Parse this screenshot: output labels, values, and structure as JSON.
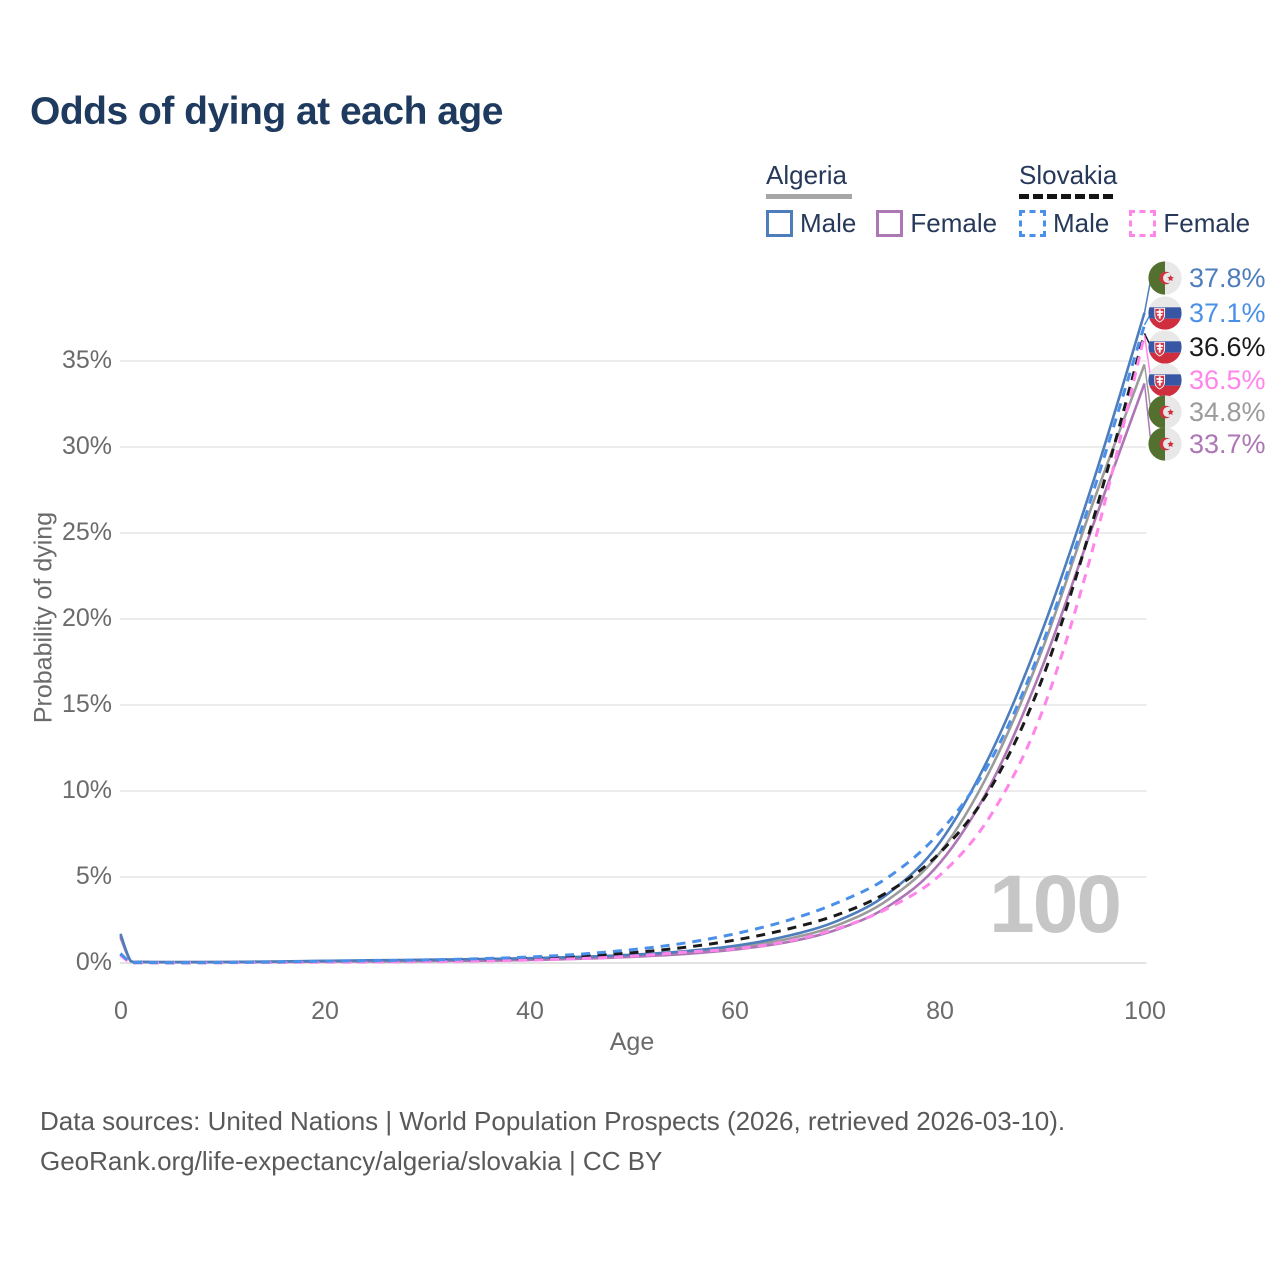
{
  "title": "Odds of dying at each age",
  "colors": {
    "title_text": "#1e3a5e",
    "legend_text": "#27395a",
    "axis_text": "#6b6b6b",
    "grid_line": "#ececec",
    "baseline": "#e3e3e3",
    "footer_text": "#595959",
    "watermark_text": "#c6c6c6",
    "algeria_underline": "#a6a6a6",
    "slovakia_underline": "#141414",
    "algeria_male": "#4d7ebb",
    "algeria_female": "#ad76b5",
    "algeria_both": "#9b9b9b",
    "slovakia_male": "#4a90e8",
    "slovakia_female": "#ff85ea",
    "slovakia_both": "#1a1a1a"
  },
  "legend": {
    "groups": [
      {
        "country": "Algeria",
        "line_style": "solid",
        "items": [
          {
            "label": "Male",
            "color": "#4d7ebb"
          },
          {
            "label": "Female",
            "color": "#ad76b5"
          }
        ]
      },
      {
        "country": "Slovakia",
        "line_style": "dashed",
        "items": [
          {
            "label": "Male",
            "color": "#4a90e8"
          },
          {
            "label": "Female",
            "color": "#ff85ea"
          }
        ]
      }
    ]
  },
  "axes": {
    "y_label": "Probability of dying",
    "y_ticks": [
      "35%",
      "30%",
      "25%",
      "20%",
      "15%",
      "10%",
      "5%",
      "0%"
    ],
    "x_label": "Age",
    "x_ticks": [
      "0",
      "20",
      "40",
      "60",
      "80",
      "100"
    ]
  },
  "watermark": "100",
  "end_labels": [
    {
      "flag": "algeria",
      "value": "37.8%",
      "color": "#4d7ebb",
      "series": "Algeria Male"
    },
    {
      "flag": "slovakia",
      "value": "37.1%",
      "color": "#4a90e8",
      "series": "Slovakia Male"
    },
    {
      "flag": "slovakia",
      "value": "36.6%",
      "color": "#1a1a1a",
      "series": "Slovakia Both sexes"
    },
    {
      "flag": "slovakia",
      "value": "36.5%",
      "color": "#ff85ea",
      "series": "Slovakia Female"
    },
    {
      "flag": "algeria",
      "value": "34.8%",
      "color": "#9b9b9b",
      "series": "Algeria Both sexes"
    },
    {
      "flag": "algeria",
      "value": "33.7%",
      "color": "#ad76b5",
      "series": "Algeria Female"
    }
  ],
  "footer": {
    "line1": "Data sources: United Nations | World Population Prospects (2026, retrieved 2026-03-10).",
    "line2": "GeoRank.org/life-expectancy/algeria/slovakia | CC BY"
  },
  "chart_data": {
    "type": "line",
    "title": "Odds of dying at each age",
    "xlabel": "Age",
    "ylabel": "Probability of dying",
    "xlim": [
      0,
      100
    ],
    "ylim": [
      0,
      38
    ],
    "y_unit": "%",
    "grid": "horizontal",
    "legend_position": "top-right",
    "x": [
      0,
      1,
      2,
      5,
      10,
      15,
      20,
      25,
      30,
      35,
      40,
      45,
      50,
      55,
      60,
      65,
      70,
      75,
      80,
      85,
      90,
      95,
      100
    ],
    "series": [
      {
        "name": "Algeria Male",
        "country": "Algeria",
        "sex": "Male",
        "color": "#4d7ebb",
        "dash": false,
        "end_label": "37.8%",
        "values": [
          1.7,
          0.12,
          0.07,
          0.05,
          0.06,
          0.09,
          0.13,
          0.16,
          0.19,
          0.23,
          0.28,
          0.36,
          0.48,
          0.68,
          1.0,
          1.55,
          2.45,
          4.05,
          7.0,
          12.2,
          19.3,
          28.0,
          37.8
        ]
      },
      {
        "name": "Algeria Female",
        "country": "Algeria",
        "sex": "Female",
        "color": "#ad76b5",
        "dash": false,
        "end_label": "33.7%",
        "values": [
          1.5,
          0.1,
          0.06,
          0.04,
          0.05,
          0.06,
          0.08,
          0.09,
          0.11,
          0.13,
          0.18,
          0.25,
          0.36,
          0.52,
          0.78,
          1.2,
          1.95,
          3.3,
          5.8,
          10.4,
          17.2,
          25.5,
          33.7
        ]
      },
      {
        "name": "Algeria Both sexes",
        "country": "Algeria",
        "sex": "Both",
        "color": "#9b9b9b",
        "dash": false,
        "end_label": "34.8%",
        "values": [
          1.6,
          0.11,
          0.065,
          0.045,
          0.055,
          0.075,
          0.1,
          0.12,
          0.15,
          0.18,
          0.23,
          0.3,
          0.42,
          0.6,
          0.9,
          1.38,
          2.2,
          3.7,
          6.4,
          11.3,
          18.2,
          26.8,
          34.8
        ]
      },
      {
        "name": "Slovakia Male",
        "country": "Slovakia",
        "sex": "Male",
        "color": "#4a90e8",
        "dash": true,
        "end_label": "37.1%",
        "values": [
          0.55,
          0.04,
          0.03,
          0.02,
          0.03,
          0.06,
          0.11,
          0.14,
          0.18,
          0.25,
          0.35,
          0.52,
          0.78,
          1.15,
          1.7,
          2.45,
          3.5,
          5.0,
          7.6,
          11.8,
          18.5,
          27.4,
          37.1
        ]
      },
      {
        "name": "Slovakia Female",
        "country": "Slovakia",
        "sex": "Female",
        "color": "#ff85ea",
        "dash": true,
        "end_label": "36.5%",
        "values": [
          0.45,
          0.03,
          0.02,
          0.012,
          0.02,
          0.035,
          0.05,
          0.06,
          0.08,
          0.11,
          0.17,
          0.26,
          0.4,
          0.62,
          0.82,
          1.25,
          2.0,
          3.2,
          5.1,
          8.6,
          14.6,
          24.2,
          36.5
        ]
      },
      {
        "name": "Slovakia Both sexes",
        "country": "Slovakia",
        "sex": "Both",
        "color": "#1a1a1a",
        "dash": true,
        "end_label": "36.6%",
        "values": [
          0.5,
          0.035,
          0.025,
          0.015,
          0.025,
          0.05,
          0.08,
          0.1,
          0.13,
          0.19,
          0.27,
          0.4,
          0.6,
          0.9,
          1.33,
          1.95,
          2.8,
          4.15,
          6.4,
          10.2,
          16.5,
          25.8,
          36.6
        ]
      }
    ]
  }
}
